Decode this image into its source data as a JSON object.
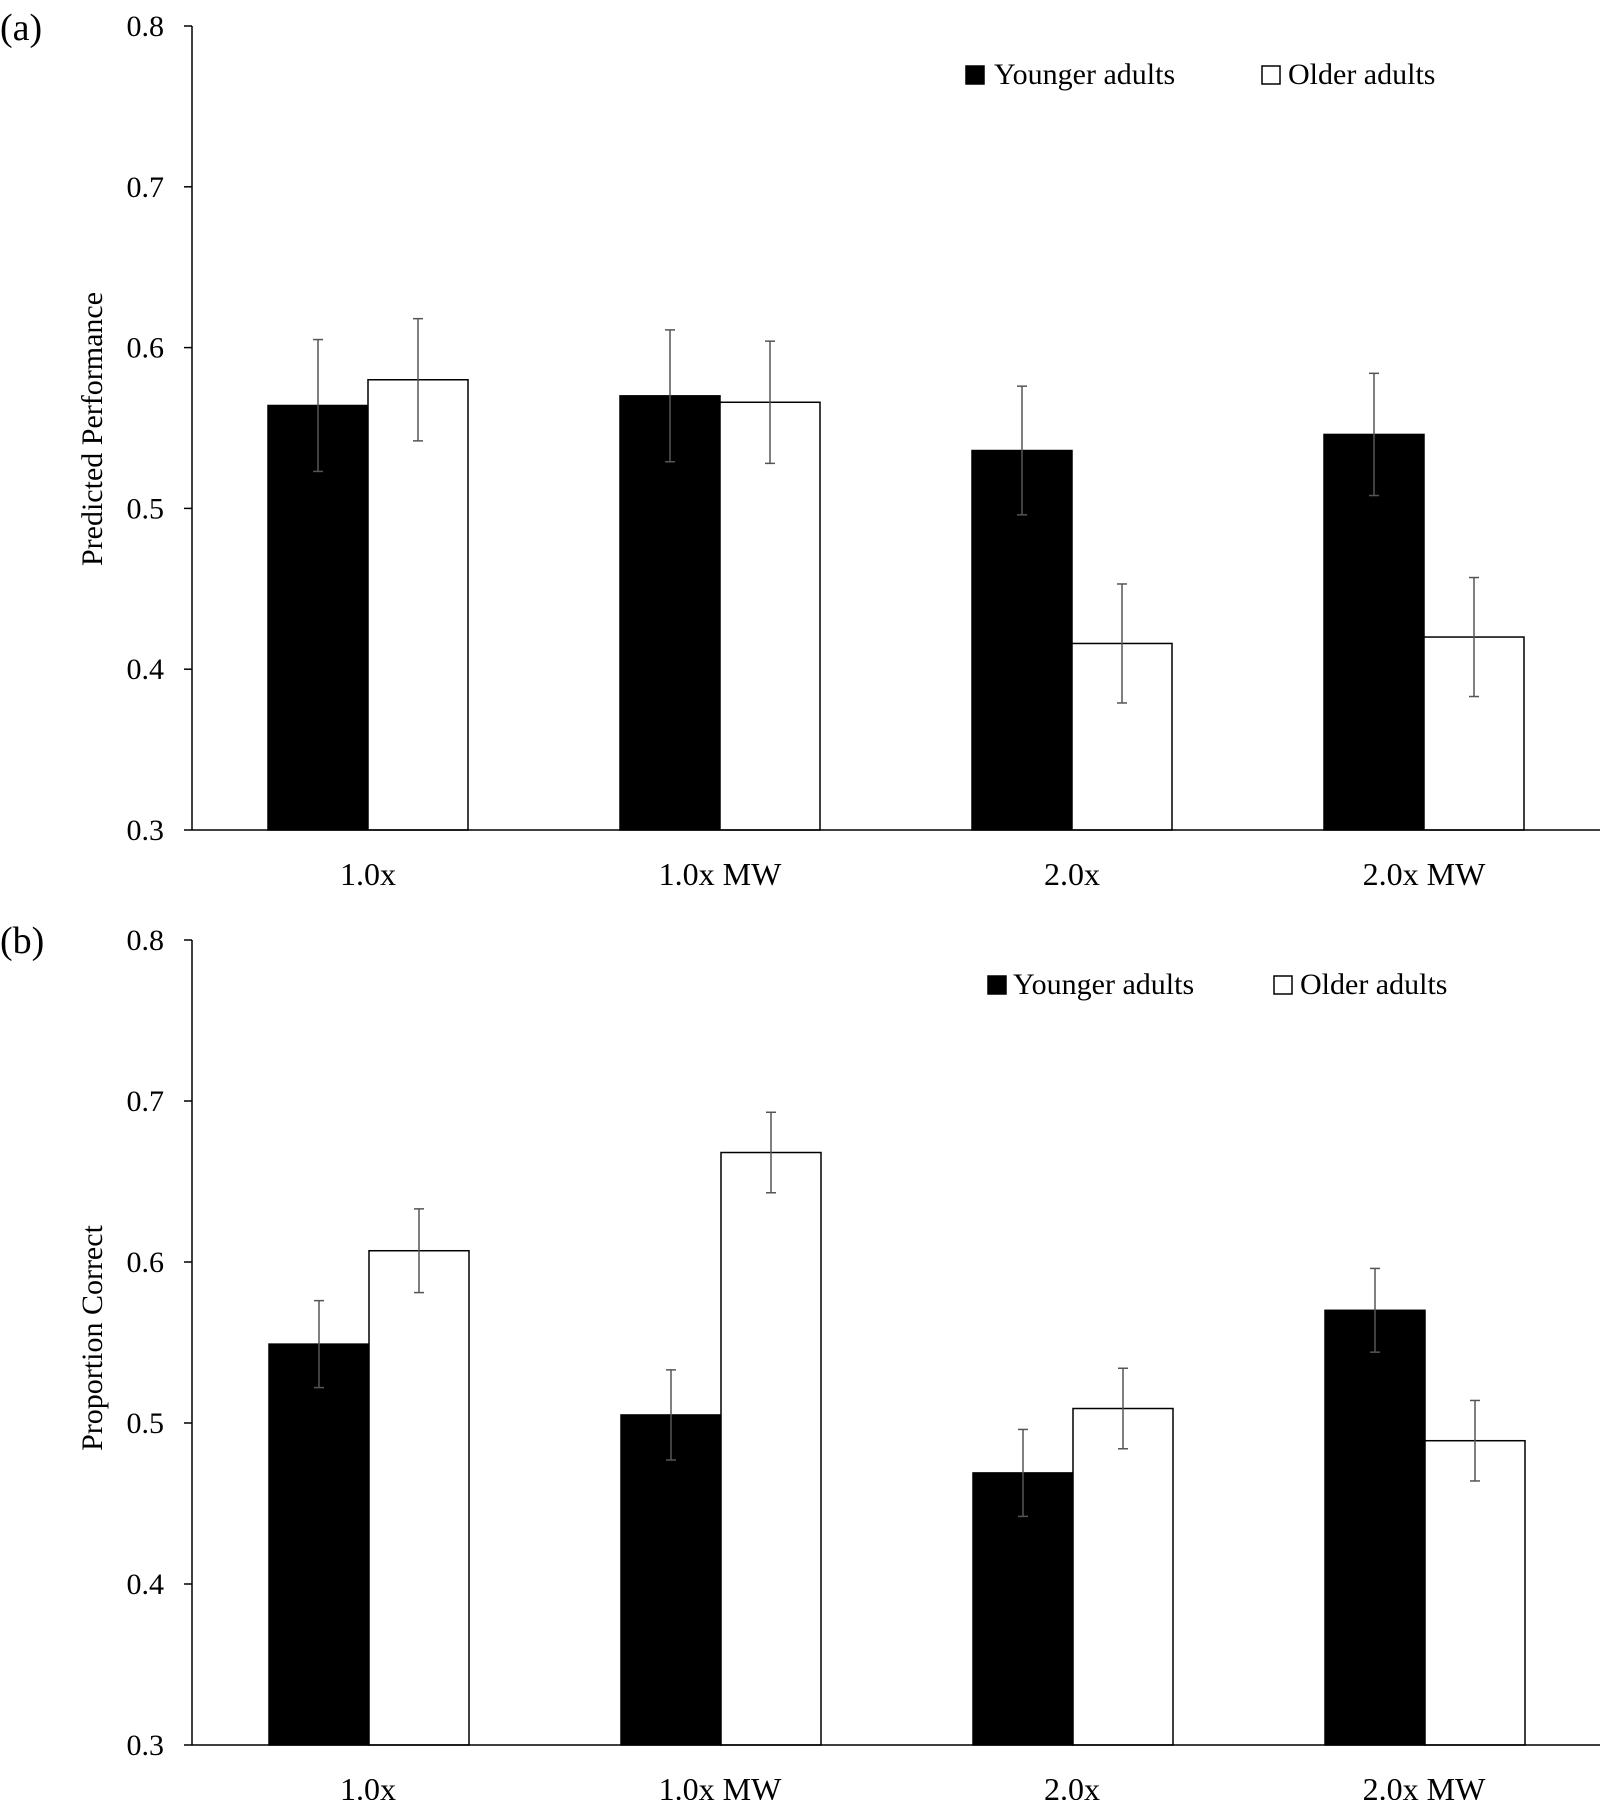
{
  "colors": {
    "younger": "#000000",
    "older": "#ffffff",
    "axis": "#000000",
    "error_bar": "#555555"
  },
  "chart_data": [
    {
      "panel_label": "(a)",
      "type": "bar",
      "title": "",
      "xlabel": "",
      "ylabel": "Predicted Performance",
      "ylim": [
        0.3,
        0.8
      ],
      "yticks": [
        "0.3",
        "0.4",
        "0.5",
        "0.6",
        "0.7",
        "0.8"
      ],
      "grid": false,
      "legend_position": "top-right",
      "categories": [
        "1.0x",
        "1.0x MW",
        "2.0x",
        "2.0x MW"
      ],
      "series": [
        {
          "name": "Younger adults",
          "values": [
            0.564,
            0.57,
            0.536,
            0.546
          ],
          "error": [
            0.041,
            0.041,
            0.04,
            0.038
          ]
        },
        {
          "name": "Older adults",
          "values": [
            0.58,
            0.566,
            0.416,
            0.42
          ],
          "error": [
            0.038,
            0.038,
            0.037,
            0.037
          ]
        }
      ]
    },
    {
      "panel_label": "(b)",
      "type": "bar",
      "title": "",
      "xlabel": "",
      "ylabel": "Proportion Correct",
      "ylim": [
        0.3,
        0.8
      ],
      "yticks": [
        "0.3",
        "0.4",
        "0.5",
        "0.6",
        "0.7",
        "0.8"
      ],
      "grid": false,
      "legend_position": "top-right",
      "categories": [
        "1.0x",
        "1.0x MW",
        "2.0x",
        "2.0x MW"
      ],
      "series": [
        {
          "name": "Younger adults",
          "values": [
            0.549,
            0.505,
            0.469,
            0.57
          ],
          "error": [
            0.027,
            0.028,
            0.027,
            0.026
          ]
        },
        {
          "name": "Older adults",
          "values": [
            0.607,
            0.668,
            0.509,
            0.489
          ],
          "error": [
            0.026,
            0.025,
            0.025,
            0.025
          ]
        }
      ]
    }
  ]
}
